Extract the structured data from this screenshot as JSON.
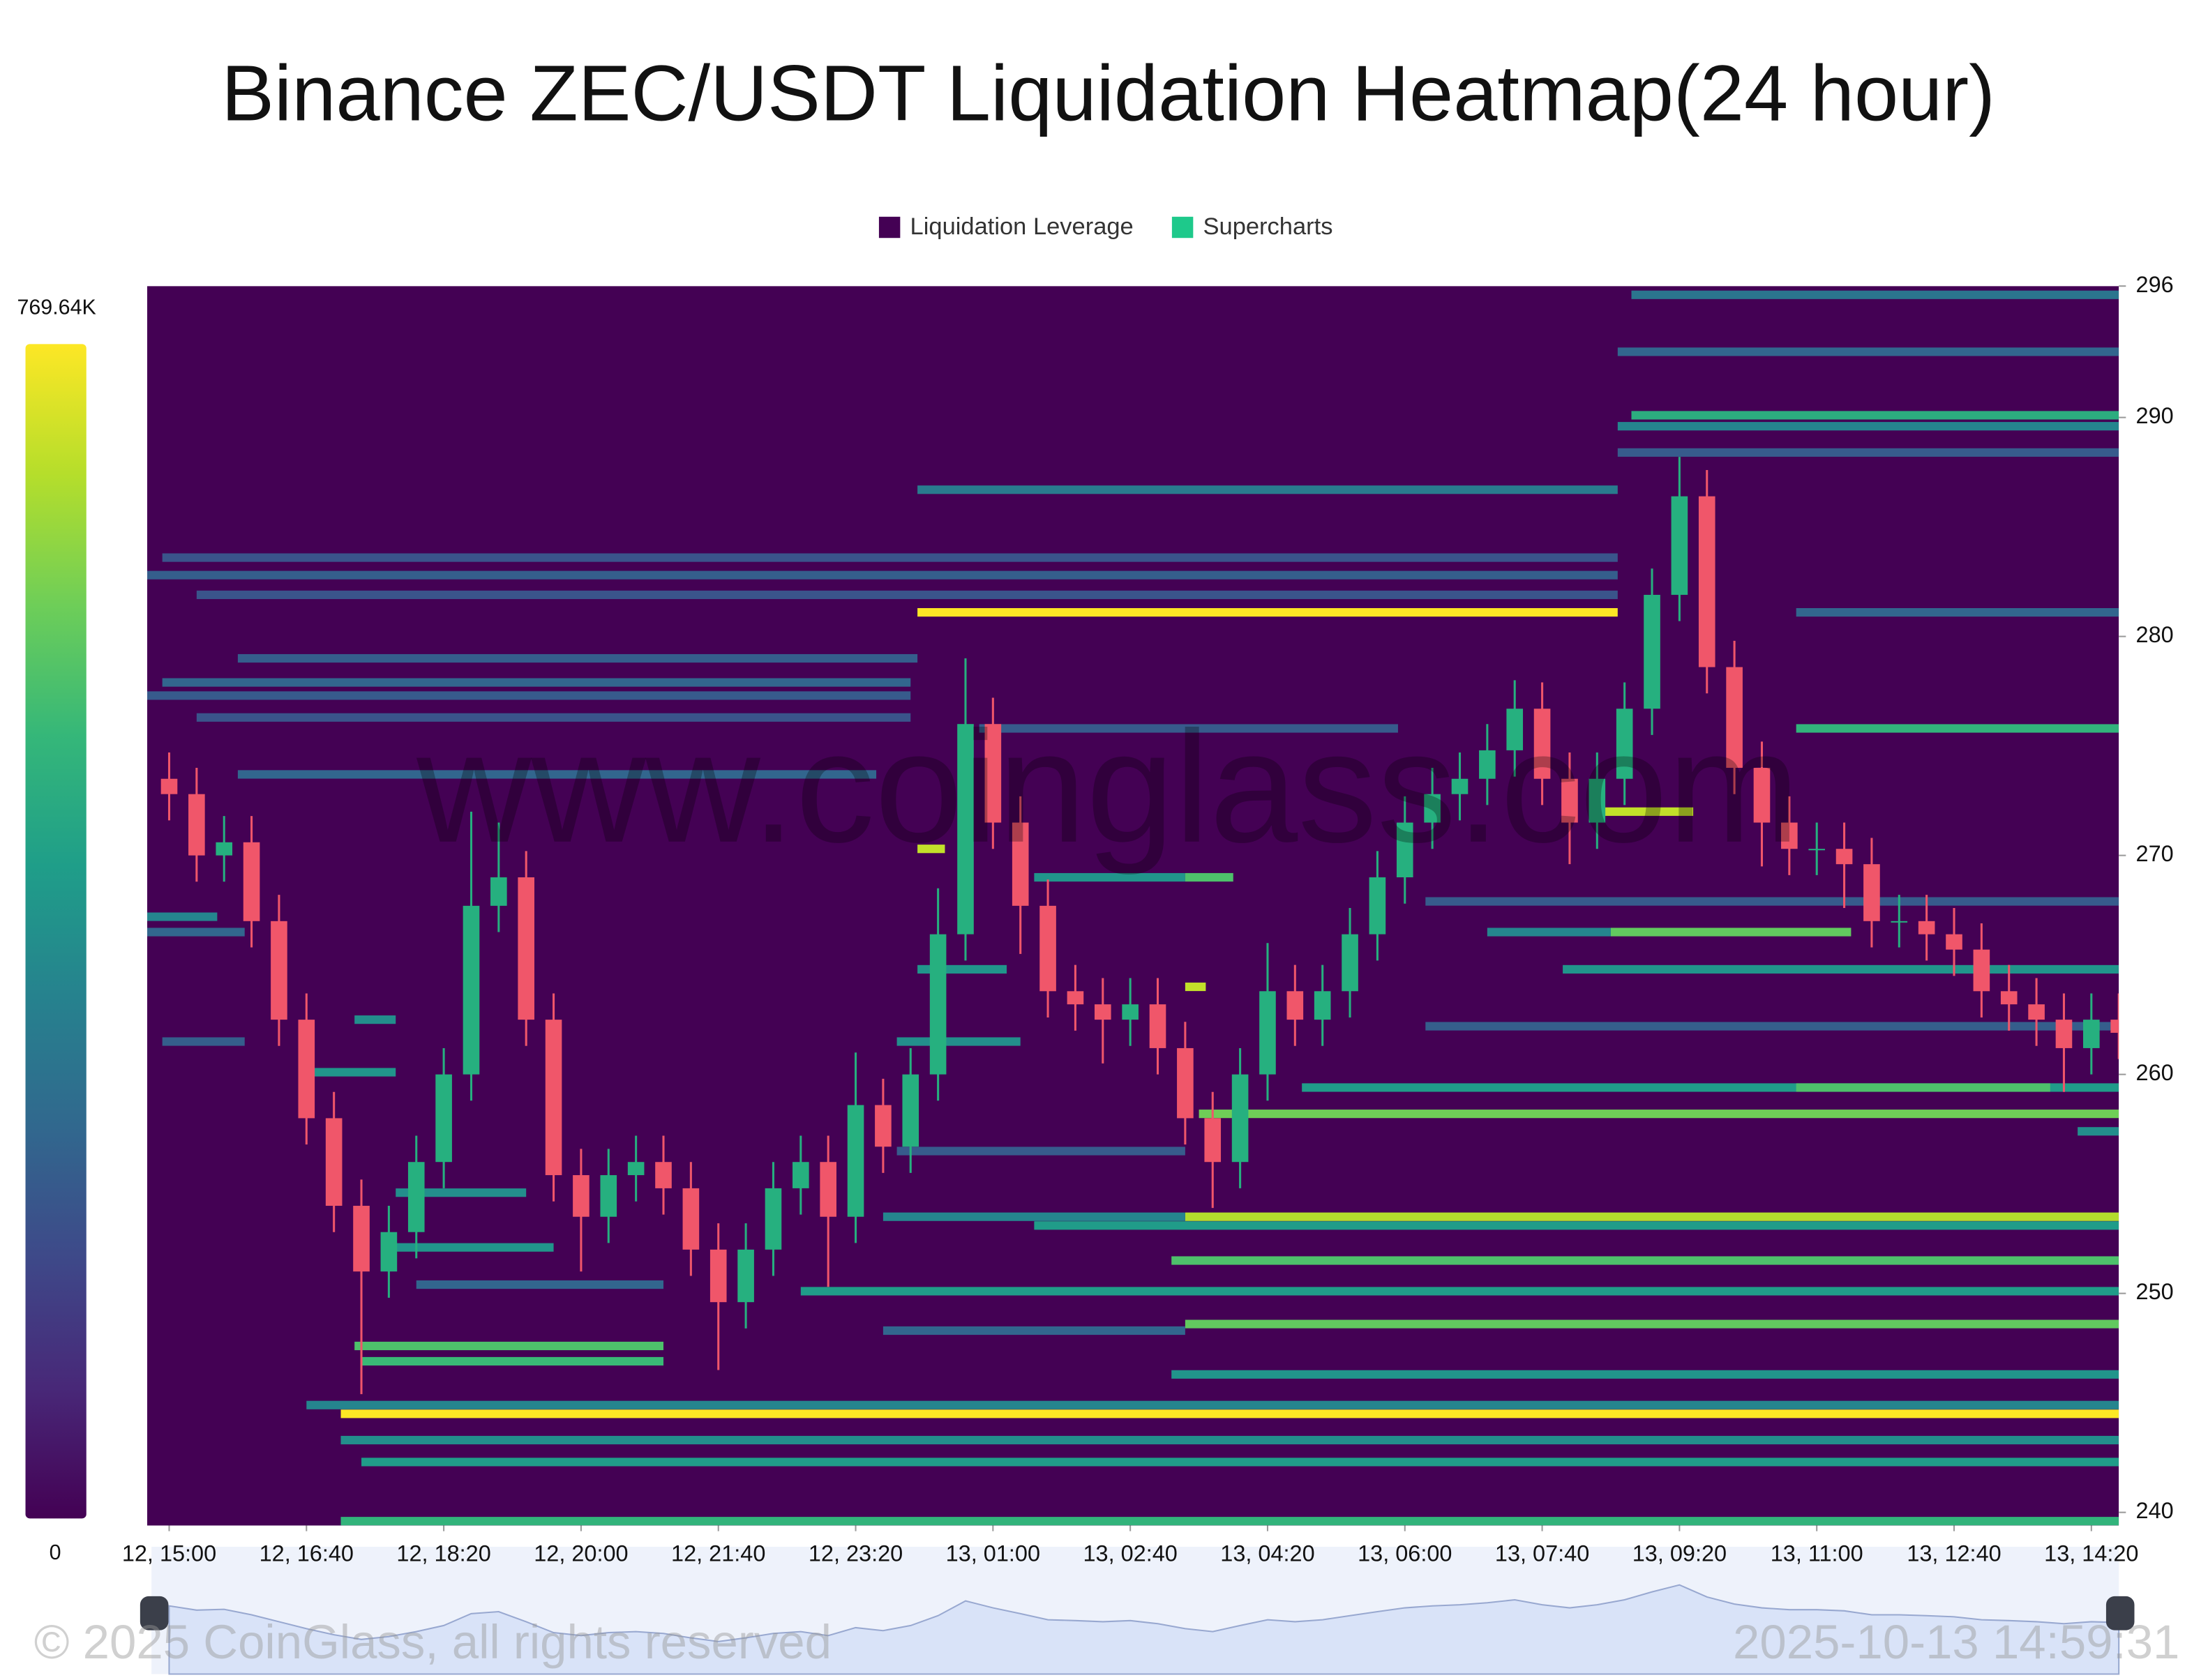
{
  "chart_data": {
    "type": "heatmap",
    "title": "Binance ZEC/USDT Liquidation Heatmap(24 hour)",
    "legend": [
      {
        "name": "Liquidation Leverage",
        "color": "#440154"
      },
      {
        "name": "Supercharts",
        "color": "#1ec98b"
      }
    ],
    "watermark": "www.coinglass.com",
    "copyright": "© 2025 CoinGlass, all rights reserved",
    "timestamp": "2025-10-13 14:59:31",
    "ylim": [
      239.4,
      296
    ],
    "yticks": [
      240,
      250,
      260,
      270,
      280,
      290,
      296
    ],
    "xlim": [
      "12, 14:44",
      "13, 14:40"
    ],
    "xticks": [
      "12, 15:00",
      "12, 16:40",
      "12, 18:20",
      "12, 20:00",
      "12, 21:40",
      "12, 23:20",
      "13, 01:00",
      "13, 02:40",
      "13, 04:20",
      "13, 06:00",
      "13, 07:40",
      "13, 09:20",
      "13, 11:00",
      "13, 12:40",
      "13, 14:20"
    ],
    "zlim": [
      0,
      769640
    ],
    "zticks": [
      0,
      {
        "value": 769640,
        "label": "769.64K"
      }
    ],
    "colorscale": [
      "#440154",
      "#482878",
      "#3e4989",
      "#31688e",
      "#26828e",
      "#1f9e89",
      "#35b779",
      "#6ece58",
      "#b5de2b",
      "#fde725"
    ],
    "bands": [
      {
        "price": 295.6,
        "start": "13, 08:45",
        "end": "13, 14:40",
        "value": 300000
      },
      {
        "price": 293,
        "start": "13, 08:35",
        "end": "13, 14:40",
        "value": 250000
      },
      {
        "price": 290.1,
        "start": "13, 08:45",
        "end": "13, 14:40",
        "value": 480000
      },
      {
        "price": 289.6,
        "start": "13, 08:35",
        "end": "13, 14:40",
        "value": 350000
      },
      {
        "price": 288.4,
        "start": "13, 08:35",
        "end": "13, 14:40",
        "value": 220000
      },
      {
        "price": 286.7,
        "start": "13, 00:05",
        "end": "13, 08:35",
        "value": 320000
      },
      {
        "price": 283.6,
        "start": "12, 14:55",
        "end": "13, 08:35",
        "value": 200000
      },
      {
        "price": 282.8,
        "start": "12, 14:44",
        "end": "13, 08:35",
        "value": 230000
      },
      {
        "price": 281.9,
        "start": "12, 15:20",
        "end": "13, 08:35",
        "value": 200000
      },
      {
        "price": 281.1,
        "start": "13, 00:05",
        "end": "13, 08:35",
        "value": 769640
      },
      {
        "price": 281.1,
        "start": "13, 10:45",
        "end": "13, 14:40",
        "value": 250000
      },
      {
        "price": 279,
        "start": "12, 15:50",
        "end": "13, 00:05",
        "value": 230000
      },
      {
        "price": 277.9,
        "start": "12, 14:55",
        "end": "13, 00:00",
        "value": 250000
      },
      {
        "price": 277.3,
        "start": "12, 14:44",
        "end": "13, 00:00",
        "value": 220000
      },
      {
        "price": 276.3,
        "start": "12, 15:20",
        "end": "13, 00:00",
        "value": 200000
      },
      {
        "price": 275.8,
        "start": "13, 10:45",
        "end": "13, 14:40",
        "value": 500000
      },
      {
        "price": 275.8,
        "start": "13, 00:50",
        "end": "13, 05:55",
        "value": 220000
      },
      {
        "price": 273.7,
        "start": "12, 15:50",
        "end": "12, 23:35",
        "value": 250000
      },
      {
        "price": 272,
        "start": "13, 08:15",
        "end": "13, 09:30",
        "value": 700000
      },
      {
        "price": 270.3,
        "start": "13, 00:05",
        "end": "13, 00:25",
        "value": 700000
      },
      {
        "price": 269,
        "start": "13, 01:30",
        "end": "13, 03:20",
        "value": 400000
      },
      {
        "price": 269,
        "start": "13, 03:20",
        "end": "13, 03:55",
        "value": 550000
      },
      {
        "price": 267.9,
        "start": "13, 06:15",
        "end": "13, 14:40",
        "value": 220000
      },
      {
        "price": 266.5,
        "start": "13, 08:30",
        "end": "13, 11:25",
        "value": 580000
      },
      {
        "price": 266.5,
        "start": "13, 07:00",
        "end": "13, 08:30",
        "value": 350000
      },
      {
        "price": 264.8,
        "start": "13, 07:55",
        "end": "13, 14:40",
        "value": 400000
      },
      {
        "price": 264.8,
        "start": "13, 00:05",
        "end": "13, 01:10",
        "value": 400000
      },
      {
        "price": 264,
        "start": "13, 03:20",
        "end": "13, 03:35",
        "value": 700000
      },
      {
        "price": 262.2,
        "start": "13, 06:15",
        "end": "13, 14:40",
        "value": 230000
      },
      {
        "price": 261.5,
        "start": "12, 23:50",
        "end": "13, 01:20",
        "value": 380000
      },
      {
        "price": 259.4,
        "start": "13, 04:45",
        "end": "13, 14:40",
        "value": 420000
      },
      {
        "price": 259.4,
        "start": "13, 10:45",
        "end": "13, 13:50",
        "value": 550000
      },
      {
        "price": 258.2,
        "start": "13, 03:30",
        "end": "13, 14:40",
        "value": 600000
      },
      {
        "price": 257.4,
        "start": "13, 14:10",
        "end": "13, 14:40",
        "value": 380000
      },
      {
        "price": 256.5,
        "start": "12, 23:50",
        "end": "13, 03:20",
        "value": 220000
      },
      {
        "price": 254.6,
        "start": "12, 17:45",
        "end": "12, 19:20",
        "value": 380000
      },
      {
        "price": 253.5,
        "start": "13, 03:20",
        "end": "13, 14:40",
        "value": 680000
      },
      {
        "price": 253.5,
        "start": "12, 23:40",
        "end": "13, 03:20",
        "value": 350000
      },
      {
        "price": 253.1,
        "start": "13, 01:30",
        "end": "13, 14:40",
        "value": 420000
      },
      {
        "price": 252.1,
        "start": "12, 17:40",
        "end": "12, 19:40",
        "value": 400000
      },
      {
        "price": 251.5,
        "start": "13, 03:10",
        "end": "13, 14:40",
        "value": 550000
      },
      {
        "price": 250.1,
        "start": "12, 22:40",
        "end": "13, 14:40",
        "value": 420000
      },
      {
        "price": 250.4,
        "start": "12, 18:00",
        "end": "12, 21:00",
        "value": 250000
      },
      {
        "price": 248.6,
        "start": "13, 03:20",
        "end": "13, 14:40",
        "value": 580000
      },
      {
        "price": 248.3,
        "start": "12, 23:40",
        "end": "13, 03:20",
        "value": 250000
      },
      {
        "price": 247.6,
        "start": "12, 17:15",
        "end": "12, 21:00",
        "value": 550000
      },
      {
        "price": 246.9,
        "start": "12, 17:20",
        "end": "12, 21:00",
        "value": 520000
      },
      {
        "price": 246.3,
        "start": "13, 03:10",
        "end": "13, 14:40",
        "value": 400000
      },
      {
        "price": 244.9,
        "start": "12, 16:40",
        "end": "13, 14:40",
        "value": 350000
      },
      {
        "price": 244.5,
        "start": "12, 17:05",
        "end": "13, 14:40",
        "value": 769640
      },
      {
        "price": 243.3,
        "start": "12, 17:05",
        "end": "13, 14:40",
        "value": 380000
      },
      {
        "price": 242.3,
        "start": "12, 17:20",
        "end": "13, 14:40",
        "value": 420000
      },
      {
        "price": 239.6,
        "start": "12, 17:05",
        "end": "13, 14:40",
        "value": 500000
      },
      {
        "price": 267.2,
        "start": "12, 14:44",
        "end": "12, 15:35",
        "value": 350000
      },
      {
        "price": 266.5,
        "start": "12, 14:44",
        "end": "12, 15:55",
        "value": 250000
      },
      {
        "price": 261.5,
        "start": "12, 14:55",
        "end": "12, 15:55",
        "value": 230000
      },
      {
        "price": 262.5,
        "start": "12, 17:15",
        "end": "12, 17:45",
        "value": 380000
      },
      {
        "price": 260.1,
        "start": "12, 16:40",
        "end": "12, 17:45",
        "value": 400000
      }
    ],
    "candles": {
      "up_color": "#26b07f",
      "down_color": "#f0566a",
      "x": [
        "12, 15:00",
        "12, 15:20",
        "12, 15:40",
        "12, 16:00",
        "12, 16:20",
        "12, 16:40",
        "12, 17:00",
        "12, 17:20",
        "12, 17:40",
        "12, 18:00",
        "12, 18:20",
        "12, 18:40",
        "12, 19:00",
        "12, 19:20",
        "12, 19:40",
        "12, 20:00",
        "12, 20:20",
        "12, 20:40",
        "12, 21:00",
        "12, 21:20",
        "12, 21:40",
        "12, 22:00",
        "12, 22:20",
        "12, 22:40",
        "12, 23:00",
        "12, 23:20",
        "12, 23:40",
        "13, 00:00",
        "13, 00:20",
        "13, 00:40",
        "13, 01:00",
        "13, 01:20",
        "13, 01:40",
        "13, 02:00",
        "13, 02:20",
        "13, 02:40",
        "13, 03:00",
        "13, 03:20",
        "13, 03:40",
        "13, 04:00",
        "13, 04:20",
        "13, 04:40",
        "13, 05:00",
        "13, 05:20",
        "13, 05:40",
        "13, 06:00",
        "13, 06:20",
        "13, 06:40",
        "13, 07:00",
        "13, 07:20",
        "13, 07:40",
        "13, 08:00",
        "13, 08:20",
        "13, 08:40",
        "13, 09:00",
        "13, 09:20",
        "13, 09:40",
        "13, 10:00",
        "13, 10:20",
        "13, 10:40",
        "13, 11:00",
        "13, 11:20",
        "13, 11:40",
        "13, 12:00",
        "13, 12:20",
        "13, 12:40",
        "13, 13:00",
        "13, 13:20",
        "13, 13:40",
        "13, 14:00",
        "13, 14:20",
        "13, 14:40"
      ],
      "open": [
        273.5,
        272.8,
        270,
        270.6,
        267,
        262.5,
        258,
        254,
        251,
        252.8,
        256,
        260,
        267.7,
        269,
        262.5,
        255.4,
        253.5,
        255.4,
        256,
        254.8,
        252,
        249.6,
        252,
        254.8,
        256,
        253.5,
        258.6,
        256.7,
        260,
        266.4,
        276,
        271.5,
        267.7,
        263.8,
        263.2,
        262.5,
        263.2,
        261.2,
        258,
        256,
        260,
        263.8,
        262.5,
        263.8,
        266.4,
        269,
        271.5,
        272.8,
        273.5,
        274.8,
        276.7,
        273.5,
        271.5,
        273.5,
        276.7,
        281.9,
        286.4,
        278.6,
        274,
        271.5,
        270.3,
        270.3,
        269.6,
        267,
        267,
        266.4,
        265.7,
        263.8,
        263.2,
        262.5,
        261.2,
        262.5
      ],
      "high": [
        274.7,
        274,
        271.8,
        271.8,
        268.2,
        263.7,
        259.2,
        255.2,
        254,
        257.2,
        261.2,
        272,
        271.5,
        270.2,
        263.7,
        256.6,
        256.6,
        257.2,
        257.2,
        256,
        253.2,
        253.2,
        256,
        257.2,
        257.2,
        261,
        259.8,
        261.2,
        268.5,
        279,
        277.2,
        272.7,
        268.9,
        265,
        264.4,
        264.4,
        264.4,
        262.4,
        259.2,
        261.2,
        266,
        265,
        265,
        267.6,
        270.2,
        272.7,
        274,
        274.7,
        276,
        278,
        277.9,
        274.7,
        274.7,
        277.9,
        283.1,
        288.2,
        287.6,
        279.8,
        275.2,
        272.7,
        271.5,
        271.5,
        270.8,
        268.2,
        268.2,
        267.6,
        266.9,
        265,
        264.4,
        263.7,
        263.7,
        263.7
      ],
      "low": [
        271.6,
        268.8,
        268.8,
        265.8,
        261.3,
        256.8,
        252.8,
        245.4,
        249.8,
        251.6,
        254.8,
        258.8,
        266.5,
        261.3,
        254.2,
        251,
        252.3,
        254.2,
        253.6,
        250.8,
        246.5,
        248.4,
        250.8,
        253.6,
        250.3,
        252.3,
        255.5,
        255.5,
        258.8,
        265.2,
        270.3,
        265.5,
        262.6,
        262,
        260.5,
        261.3,
        260,
        256.8,
        253.9,
        254.8,
        258.8,
        261.3,
        261.3,
        262.6,
        265.2,
        267.8,
        270.3,
        271.6,
        272.3,
        273.6,
        272.3,
        269.6,
        270.3,
        272.3,
        275.5,
        280.7,
        277.4,
        272.8,
        269.5,
        269.1,
        269.1,
        267.6,
        265.8,
        265.8,
        265.2,
        264.5,
        262.6,
        262,
        261.3,
        259.2,
        260,
        260.7
      ],
      "close": [
        272.8,
        270,
        270.6,
        267,
        262.5,
        258,
        254,
        251,
        252.8,
        256,
        260,
        267.7,
        269,
        262.5,
        255.4,
        253.5,
        255.4,
        256,
        254.8,
        252,
        249.6,
        252,
        254.8,
        256,
        253.5,
        258.6,
        256.7,
        260,
        266.4,
        276,
        271.5,
        267.7,
        263.8,
        263.2,
        262.5,
        263.2,
        261.2,
        258,
        256,
        260,
        263.8,
        262.5,
        263.8,
        266.4,
        269,
        271.5,
        272.8,
        273.5,
        274.8,
        276.7,
        273.5,
        271.5,
        273.5,
        276.7,
        281.9,
        286.4,
        278.6,
        274,
        271.5,
        270.3,
        270.3,
        269.6,
        267,
        267,
        266.4,
        265.7,
        263.8,
        263.2,
        262.5,
        261.2,
        262.5,
        261.9
      ]
    }
  }
}
